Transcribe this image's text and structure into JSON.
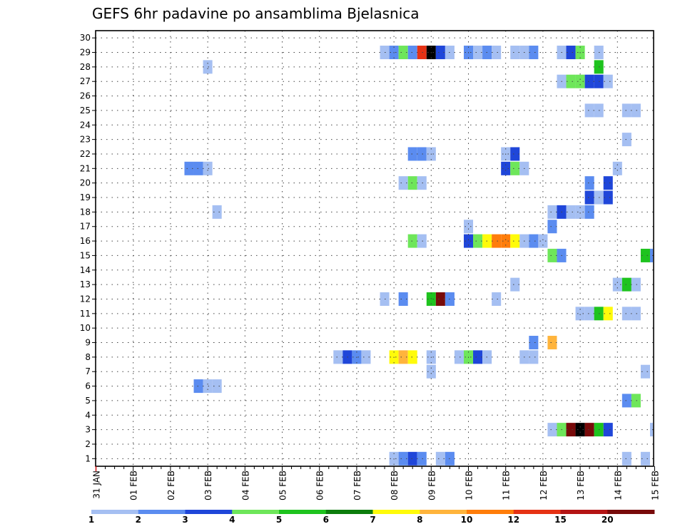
{
  "chart_data": {
    "type": "heatmap",
    "title": "GEFS 6hr padavine po ansamblima Bjelasnica",
    "x_tick_labels": [
      "31 JAN",
      "01 FEB",
      "02 FEB",
      "03 FEB",
      "04 FEB",
      "05 FEB",
      "06 FEB",
      "07 FEB",
      "08 FEB",
      "09 FEB",
      "10 FEB",
      "11 FEB",
      "12 FEB",
      "13 FEB",
      "14 FEB",
      "15 FEB"
    ],
    "xlim": [
      0,
      60
    ],
    "y_tick_labels": [
      "1",
      "2",
      "3",
      "4",
      "5",
      "6",
      "7",
      "8",
      "9",
      "10",
      "11",
      "12",
      "13",
      "14",
      "15",
      "16",
      "17",
      "18",
      "19",
      "20",
      "21",
      "22",
      "23",
      "24",
      "25",
      "26",
      "27",
      "28",
      "29",
      "30"
    ],
    "ylim": [
      0,
      30
    ],
    "grid": "dotted",
    "colorbar": {
      "labels": [
        "1",
        "2",
        "3",
        "4",
        "5",
        "6",
        "7",
        "8",
        "10",
        "12",
        "15",
        "20"
      ],
      "colors": [
        "#a5bff2",
        "#5b8cf0",
        "#1f46d9",
        "#6ee65a",
        "#1ec31e",
        "#0c7d0c",
        "#fffb0a",
        "#ffb43c",
        "#ff7d0a",
        "#e63214",
        "#b41414",
        "#780a0a"
      ]
    },
    "cells": [
      [
        31,
        29,
        1
      ],
      [
        32,
        29,
        2
      ],
      [
        33,
        29,
        4
      ],
      [
        34,
        29,
        2
      ],
      [
        35,
        29,
        10
      ],
      [
        36,
        29,
        20
      ],
      [
        37,
        29,
        3
      ],
      [
        38,
        29,
        1
      ],
      [
        40,
        29,
        2
      ],
      [
        41,
        29,
        1
      ],
      [
        42,
        29,
        2
      ],
      [
        43,
        29,
        1
      ],
      [
        45,
        29,
        1
      ],
      [
        46,
        29,
        1
      ],
      [
        47,
        29,
        2
      ],
      [
        50,
        29,
        1
      ],
      [
        51,
        29,
        3
      ],
      [
        52,
        29,
        4
      ],
      [
        54,
        29,
        1
      ],
      [
        12,
        28,
        1
      ],
      [
        54,
        28,
        5
      ],
      [
        50,
        27,
        1
      ],
      [
        51,
        27,
        4
      ],
      [
        52,
        27,
        4
      ],
      [
        53,
        27,
        3
      ],
      [
        54,
        27,
        3
      ],
      [
        55,
        27,
        1
      ],
      [
        53,
        25,
        1
      ],
      [
        54,
        25,
        1
      ],
      [
        57,
        25,
        1
      ],
      [
        58,
        25,
        1
      ],
      [
        57,
        23,
        1
      ],
      [
        34,
        22,
        2
      ],
      [
        35,
        22,
        2
      ],
      [
        36,
        22,
        1
      ],
      [
        44,
        22,
        1
      ],
      [
        45,
        22,
        3
      ],
      [
        10,
        21,
        2
      ],
      [
        11,
        21,
        2
      ],
      [
        12,
        21,
        1
      ],
      [
        44,
        21,
        3
      ],
      [
        45,
        21,
        4
      ],
      [
        46,
        21,
        1
      ],
      [
        56,
        21,
        1
      ],
      [
        33,
        20,
        1
      ],
      [
        34,
        20,
        4
      ],
      [
        35,
        20,
        1
      ],
      [
        53,
        20,
        2
      ],
      [
        55,
        20,
        3
      ],
      [
        53,
        19,
        3
      ],
      [
        54,
        19,
        1
      ],
      [
        55,
        19,
        3
      ],
      [
        13,
        18,
        1
      ],
      [
        49,
        18,
        1
      ],
      [
        50,
        18,
        3
      ],
      [
        51,
        18,
        1
      ],
      [
        52,
        18,
        1
      ],
      [
        53,
        18,
        2
      ],
      [
        40,
        17,
        1
      ],
      [
        49,
        17,
        2
      ],
      [
        34,
        16,
        4
      ],
      [
        35,
        16,
        1
      ],
      [
        40,
        16,
        3
      ],
      [
        41,
        16,
        4
      ],
      [
        42,
        16,
        7
      ],
      [
        43,
        16,
        9
      ],
      [
        44,
        16,
        9
      ],
      [
        45,
        16,
        7
      ],
      [
        46,
        16,
        1
      ],
      [
        47,
        16,
        2
      ],
      [
        48,
        16,
        1
      ],
      [
        49,
        15,
        4
      ],
      [
        50,
        15,
        2
      ],
      [
        59,
        15,
        5
      ],
      [
        60,
        15,
        2
      ],
      [
        45,
        13,
        1
      ],
      [
        56,
        13,
        1
      ],
      [
        57,
        13,
        5
      ],
      [
        58,
        13,
        1
      ],
      [
        31,
        12,
        1
      ],
      [
        33,
        12,
        2
      ],
      [
        36,
        12,
        5
      ],
      [
        37,
        12,
        12
      ],
      [
        38,
        12,
        2
      ],
      [
        43,
        12,
        1
      ],
      [
        52,
        11,
        1
      ],
      [
        53,
        11,
        1
      ],
      [
        54,
        11,
        5
      ],
      [
        55,
        11,
        7
      ],
      [
        57,
        11,
        1
      ],
      [
        58,
        11,
        1
      ],
      [
        47,
        9,
        2
      ],
      [
        49,
        9,
        8
      ],
      [
        26,
        8,
        1
      ],
      [
        27,
        8,
        3
      ],
      [
        28,
        8,
        2
      ],
      [
        29,
        8,
        1
      ],
      [
        32,
        8,
        7
      ],
      [
        33,
        8,
        8
      ],
      [
        34,
        8,
        7
      ],
      [
        36,
        8,
        1
      ],
      [
        39,
        8,
        1
      ],
      [
        40,
        8,
        4
      ],
      [
        41,
        8,
        3
      ],
      [
        42,
        8,
        1
      ],
      [
        46,
        8,
        1
      ],
      [
        47,
        8,
        1
      ],
      [
        36,
        7,
        1
      ],
      [
        59,
        7,
        1
      ],
      [
        11,
        6,
        2
      ],
      [
        12,
        6,
        1
      ],
      [
        13,
        6,
        1
      ],
      [
        57,
        5,
        2
      ],
      [
        58,
        5,
        4
      ],
      [
        49,
        3,
        1
      ],
      [
        50,
        3,
        4
      ],
      [
        51,
        3,
        12
      ],
      [
        52,
        3,
        15
      ],
      [
        53,
        3,
        12
      ],
      [
        54,
        3,
        5
      ],
      [
        55,
        3,
        3
      ],
      [
        60,
        3,
        1
      ],
      [
        32,
        1,
        1
      ],
      [
        33,
        1,
        2
      ],
      [
        34,
        1,
        3
      ],
      [
        35,
        1,
        2
      ],
      [
        37,
        1,
        1
      ],
      [
        38,
        1,
        2
      ],
      [
        57,
        1,
        1
      ],
      [
        59,
        1,
        1
      ]
    ]
  }
}
